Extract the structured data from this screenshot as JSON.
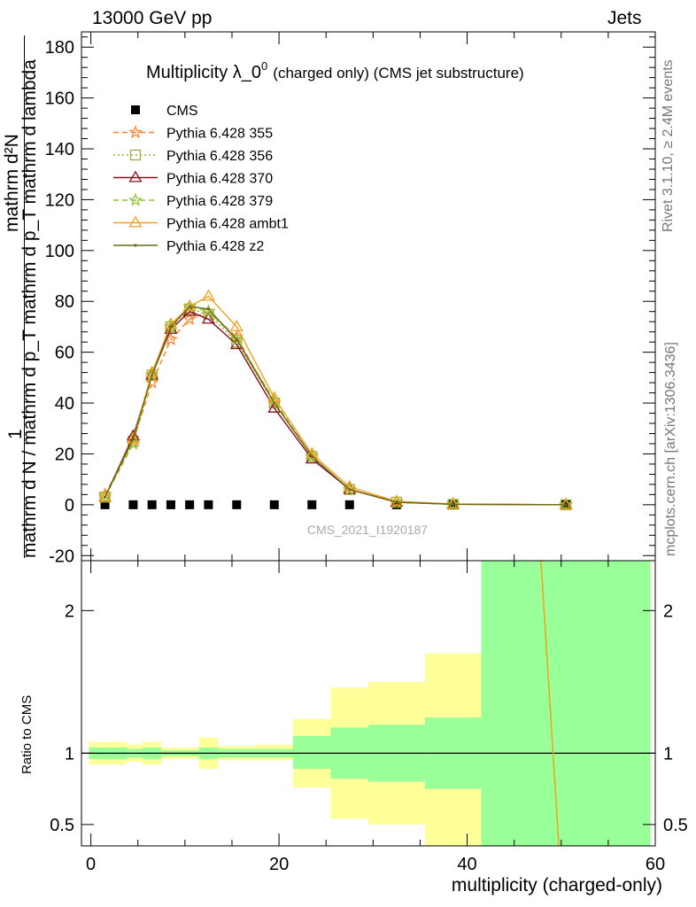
{
  "header": {
    "left": "13000 GeV pp",
    "right": "Jets"
  },
  "side_labels": {
    "rivet": "Rivet 3.1.10, ≥ 2.4M events",
    "mcplots": "mcplots.cern.ch [arXiv:1306.3436]"
  },
  "analysis_id": "CMS_2021_I1920187",
  "y_axis_label_lines": {
    "numerator": "mathrm d²N",
    "one": "1",
    "denominator": "mathrm d N / mathrm d p_T mathrm d p_T mathrm d lambda"
  },
  "chart_data": [
    {
      "type": "line",
      "title_main": "Multiplicity λ_0",
      "title_sup": "0",
      "title_note": "(charged only) (CMS jet substructure)",
      "xlabel": "multiplicity (charged-only)",
      "ylabel": "",
      "xlim": [
        -1,
        60
      ],
      "ylim": [
        -22,
        186
      ],
      "yticks": [
        -20,
        0,
        20,
        40,
        60,
        80,
        100,
        120,
        140,
        160,
        180
      ],
      "xticks": [
        0,
        20,
        40,
        60
      ],
      "legend_position": "top-left",
      "x": [
        1.5,
        4.5,
        6.5,
        8.5,
        10.5,
        12.5,
        15.5,
        19.5,
        23.5,
        27.5,
        32.5,
        38.5,
        50.5
      ],
      "series": [
        {
          "name": "CMS",
          "color": "#000000",
          "marker": "square",
          "dash": "none",
          "values": [
            0.0,
            0.0,
            0.0,
            0.0,
            0.0,
            0.0,
            0.0,
            0.0,
            0.0,
            0.0,
            0.0,
            0.0,
            0.0
          ]
        },
        {
          "name": "Pythia 6.428 355",
          "color": "#ff7f2a",
          "marker": "star",
          "dash": "6,4",
          "values": [
            4,
            25,
            48,
            65,
            73,
            76,
            66,
            40,
            19,
            6,
            1.2,
            0.2,
            0.01
          ]
        },
        {
          "name": "Pythia 6.428 356",
          "color": "#99b03a",
          "marker": "open-square",
          "dash": "2,3",
          "values": [
            3,
            25,
            51,
            70,
            77,
            75,
            64,
            40,
            19,
            6,
            1.0,
            0.2,
            0.01
          ]
        },
        {
          "name": "Pythia 6.428 370",
          "color": "#8b0f1e",
          "marker": "open-triangle",
          "dash": "none",
          "values": [
            3,
            27,
            51,
            69,
            76,
            73,
            63,
            38,
            18,
            6,
            1.0,
            0.2,
            0.01
          ]
        },
        {
          "name": "Pythia 6.428 379",
          "color": "#8fc332",
          "marker": "star",
          "dash": "6,4",
          "values": [
            3,
            24,
            51,
            70,
            78,
            76,
            65,
            41,
            19,
            6,
            1.0,
            0.2,
            0.01
          ]
        },
        {
          "name": "Pythia 6.428 ambt1",
          "color": "#f2a020",
          "marker": "open-triangle",
          "dash": "none",
          "values": [
            3,
            26,
            52,
            71,
            78,
            82,
            70,
            42,
            20,
            7,
            1.3,
            0.3,
            0.02
          ]
        },
        {
          "name": "Pythia 6.428 z2",
          "color": "#6b6b14",
          "marker": "dot",
          "dash": "none",
          "values": [
            3,
            26,
            51,
            70,
            78,
            77,
            65,
            40,
            19,
            6,
            1.0,
            0.2,
            0.01
          ]
        }
      ]
    },
    {
      "type": "area",
      "ylabel": "Ratio to CMS",
      "xlabel": "multiplicity (charged-only)",
      "xlim": [
        -1,
        60
      ],
      "ylim": [
        0.35,
        2.35
      ],
      "yticks": [
        0.5,
        1,
        2
      ],
      "reference": 1,
      "bins": [
        {
          "x0": -0.2,
          "x1": 3.8,
          "stat": [
            0.96,
            1.04
          ],
          "total": [
            0.92,
            1.08
          ]
        },
        {
          "x0": 3.8,
          "x1": 5.5,
          "stat": [
            0.97,
            1.03
          ],
          "total": [
            0.94,
            1.06
          ]
        },
        {
          "x0": 5.5,
          "x1": 7.5,
          "stat": [
            0.96,
            1.04
          ],
          "total": [
            0.92,
            1.08
          ]
        },
        {
          "x0": 7.5,
          "x1": 9.5,
          "stat": [
            0.98,
            1.02
          ],
          "total": [
            0.96,
            1.04
          ]
        },
        {
          "x0": 9.5,
          "x1": 11.5,
          "stat": [
            0.98,
            1.02
          ],
          "total": [
            0.96,
            1.04
          ]
        },
        {
          "x0": 11.5,
          "x1": 13.5,
          "stat": [
            0.96,
            1.04
          ],
          "total": [
            0.89,
            1.11
          ]
        },
        {
          "x0": 13.5,
          "x1": 17.5,
          "stat": [
            0.97,
            1.03
          ],
          "total": [
            0.95,
            1.05
          ]
        },
        {
          "x0": 17.5,
          "x1": 21.5,
          "stat": [
            0.97,
            1.03
          ],
          "total": [
            0.95,
            1.06
          ]
        },
        {
          "x0": 21.5,
          "x1": 25.5,
          "stat": [
            0.89,
            1.12
          ],
          "total": [
            0.76,
            1.24
          ]
        },
        {
          "x0": 25.5,
          "x1": 29.5,
          "stat": [
            0.82,
            1.18
          ],
          "total": [
            0.54,
            1.46
          ]
        },
        {
          "x0": 29.5,
          "x1": 35.5,
          "stat": [
            0.8,
            1.2
          ],
          "total": [
            0.5,
            1.5
          ]
        },
        {
          "x0": 35.5,
          "x1": 41.5,
          "stat": [
            0.75,
            1.25
          ],
          "total": [
            0.3,
            1.7
          ]
        },
        {
          "x0": 41.5,
          "x1": 59.5,
          "stat": [
            0.3,
            2.4
          ],
          "total": [
            0.3,
            2.4
          ]
        }
      ],
      "series": [
        {
          "name": "Pythia 6.428 ambt1",
          "color": "#f2a020",
          "x": [
            47.8,
            49.8
          ],
          "values": [
            2.4,
            0.3
          ]
        }
      ]
    }
  ]
}
